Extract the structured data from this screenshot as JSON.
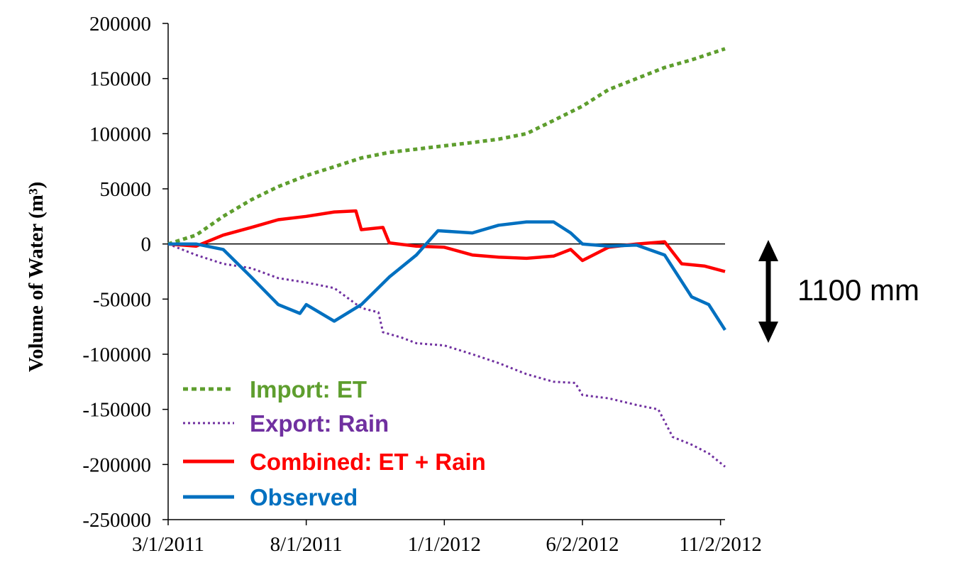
{
  "chart_data": {
    "type": "line",
    "title": "",
    "xlabel": "",
    "ylabel": "Volume of Water (m³)",
    "x_tick_labels": [
      "3/1/2011",
      "8/1/2011",
      "1/1/2012",
      "6/2/2012",
      "11/2/2012"
    ],
    "x_tick_dates": [
      "2011-03-01",
      "2011-08-01",
      "2012-01-01",
      "2012-06-02",
      "2012-11-02"
    ],
    "xlim": [
      "2011-03-01",
      "2012-11-07"
    ],
    "ylim": [
      -250000,
      200000
    ],
    "y_ticks": [
      200000,
      150000,
      100000,
      50000,
      0,
      -50000,
      -100000,
      -150000,
      -200000,
      -250000
    ],
    "y_tick_labels": [
      "200000",
      "150000",
      "100000",
      "50000",
      "0",
      "-50000",
      "-100000",
      "-150000",
      "-200000",
      "-250000"
    ],
    "zero_line": true,
    "grid": false,
    "legend_position": "bottom-left",
    "series": [
      {
        "name": "Import: ET",
        "color": "#5E9E2E",
        "style": "dotted",
        "points": [
          [
            "2011-03-01",
            0
          ],
          [
            "2011-04-01",
            8000
          ],
          [
            "2011-05-01",
            25000
          ],
          [
            "2011-06-01",
            40000
          ],
          [
            "2011-07-01",
            52000
          ],
          [
            "2011-08-01",
            62000
          ],
          [
            "2011-09-01",
            70000
          ],
          [
            "2011-10-01",
            78000
          ],
          [
            "2011-11-01",
            83000
          ],
          [
            "2011-12-01",
            86000
          ],
          [
            "2012-01-01",
            89000
          ],
          [
            "2012-02-01",
            92000
          ],
          [
            "2012-03-01",
            95000
          ],
          [
            "2012-04-01",
            100000
          ],
          [
            "2012-05-01",
            112000
          ],
          [
            "2012-06-02",
            125000
          ],
          [
            "2012-07-01",
            140000
          ],
          [
            "2012-08-01",
            150000
          ],
          [
            "2012-09-01",
            160000
          ],
          [
            "2012-10-01",
            167000
          ],
          [
            "2012-11-07",
            177000
          ]
        ]
      },
      {
        "name": "Export: Rain",
        "color": "#7030A0",
        "style": "dotted",
        "points": [
          [
            "2011-03-01",
            0
          ],
          [
            "2011-04-01",
            -10000
          ],
          [
            "2011-05-01",
            -18000
          ],
          [
            "2011-06-01",
            -22000
          ],
          [
            "2011-07-01",
            -31000
          ],
          [
            "2011-08-01",
            -35000
          ],
          [
            "2011-09-01",
            -40000
          ],
          [
            "2011-10-01",
            -58000
          ],
          [
            "2011-10-20",
            -62000
          ],
          [
            "2011-10-25",
            -80000
          ],
          [
            "2011-11-15",
            -85000
          ],
          [
            "2011-12-01",
            -90000
          ],
          [
            "2012-01-01",
            -92000
          ],
          [
            "2012-02-01",
            -100000
          ],
          [
            "2012-03-01",
            -108000
          ],
          [
            "2012-04-01",
            -118000
          ],
          [
            "2012-05-01",
            -125000
          ],
          [
            "2012-05-25",
            -126000
          ],
          [
            "2012-06-02",
            -137000
          ],
          [
            "2012-07-01",
            -140000
          ],
          [
            "2012-08-01",
            -146000
          ],
          [
            "2012-08-25",
            -150000
          ],
          [
            "2012-09-10",
            -175000
          ],
          [
            "2012-10-01",
            -182000
          ],
          [
            "2012-10-20",
            -190000
          ],
          [
            "2012-11-07",
            -202000
          ]
        ]
      },
      {
        "name": "Combined: ET + Rain",
        "color": "#FF0000",
        "style": "solid",
        "points": [
          [
            "2011-03-01",
            0
          ],
          [
            "2011-04-01",
            -2000
          ],
          [
            "2011-05-01",
            8000
          ],
          [
            "2011-06-01",
            15000
          ],
          [
            "2011-07-01",
            22000
          ],
          [
            "2011-08-01",
            25000
          ],
          [
            "2011-09-01",
            29000
          ],
          [
            "2011-09-25",
            30000
          ],
          [
            "2011-10-01",
            13000
          ],
          [
            "2011-10-25",
            15000
          ],
          [
            "2011-11-01",
            1000
          ],
          [
            "2011-12-01",
            -2000
          ],
          [
            "2012-01-01",
            -3000
          ],
          [
            "2012-02-01",
            -10000
          ],
          [
            "2012-03-01",
            -12000
          ],
          [
            "2012-04-01",
            -13000
          ],
          [
            "2012-05-01",
            -11000
          ],
          [
            "2012-05-20",
            -5000
          ],
          [
            "2012-06-02",
            -15000
          ],
          [
            "2012-07-01",
            -3000
          ],
          [
            "2012-08-01",
            0
          ],
          [
            "2012-09-01",
            2000
          ],
          [
            "2012-09-20",
            -18000
          ],
          [
            "2012-10-15",
            -20000
          ],
          [
            "2012-11-07",
            -25000
          ]
        ]
      },
      {
        "name": "Observed",
        "color": "#0070C0",
        "style": "solid",
        "points": [
          [
            "2011-03-01",
            0
          ],
          [
            "2011-04-01",
            0
          ],
          [
            "2011-05-01",
            -5000
          ],
          [
            "2011-06-01",
            -30000
          ],
          [
            "2011-07-01",
            -55000
          ],
          [
            "2011-07-25",
            -63000
          ],
          [
            "2011-08-01",
            -55000
          ],
          [
            "2011-09-01",
            -70000
          ],
          [
            "2011-10-01",
            -55000
          ],
          [
            "2011-11-01",
            -30000
          ],
          [
            "2011-12-01",
            -10000
          ],
          [
            "2011-12-25",
            12000
          ],
          [
            "2012-02-01",
            10000
          ],
          [
            "2012-03-01",
            17000
          ],
          [
            "2012-04-01",
            20000
          ],
          [
            "2012-05-01",
            20000
          ],
          [
            "2012-05-20",
            10000
          ],
          [
            "2012-06-02",
            0
          ],
          [
            "2012-07-01",
            -2000
          ],
          [
            "2012-08-01",
            -1000
          ],
          [
            "2012-09-01",
            -10000
          ],
          [
            "2012-10-01",
            -48000
          ],
          [
            "2012-10-20",
            -55000
          ],
          [
            "2012-11-07",
            -78000
          ]
        ]
      }
    ],
    "annotation": {
      "label": "1100 mm",
      "arrow": "double-vertical",
      "range": [
        0,
        -90000
      ]
    }
  }
}
